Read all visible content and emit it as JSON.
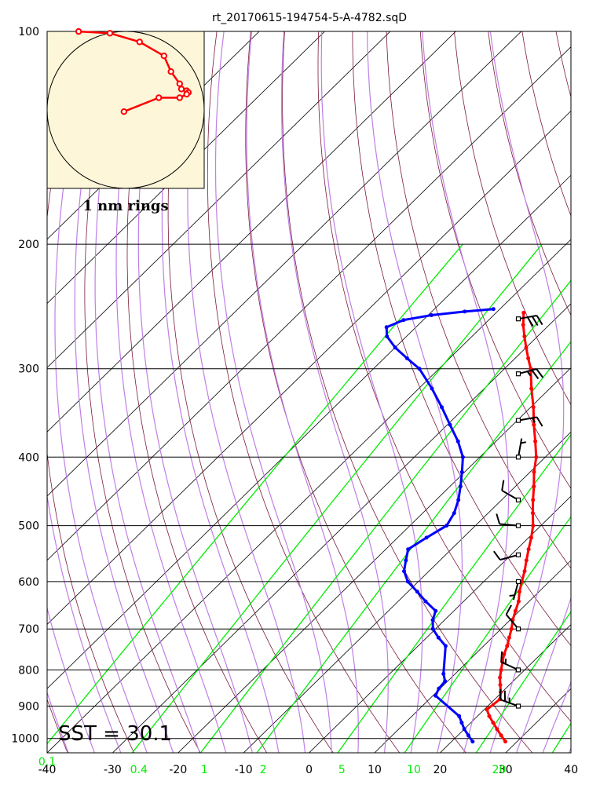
{
  "chart_data": {
    "type": "scatter",
    "subtype": "skew-t log-p sounding",
    "title": "rt_20170615-194754-5-A-4782.sqD",
    "sst_label": "SST = 30.1",
    "hodograph_label": "1 nm rings",
    "xlim": [
      -40,
      40
    ],
    "ylim": [
      1050,
      100
    ],
    "y_scale": "log",
    "grid": true,
    "pressure_ticks": [
      "100",
      "200",
      "300",
      "400",
      "500",
      "600",
      "700",
      "800",
      "900",
      "1000"
    ],
    "temperature_ticks": [
      "-40",
      "-30",
      "-20",
      "-10",
      "0",
      "10",
      "20",
      "30",
      "40"
    ],
    "mixing_ratio_ticks": [
      {
        "label": "0.1",
        "t": -40
      },
      {
        "label": "0.4",
        "t": -26
      },
      {
        "label": "1",
        "t": -16
      },
      {
        "label": "2",
        "t": -7
      },
      {
        "label": "5",
        "t": 5
      },
      {
        "label": "10",
        "t": 16
      },
      {
        "label": "20",
        "t": 29
      }
    ],
    "colors": {
      "temperature": "#ff0000",
      "dewpoint": "#0000ff",
      "mixing_ratio": "#00ee00",
      "moist_adiabat": "#bf7fe6",
      "dry_adiabat": "#7a1a3a",
      "isotherm": "#000000",
      "hodograph_fill": "#fdf6d8"
    },
    "series": [
      {
        "kind": "temperature",
        "points": [
          {
            "p": 1010,
            "t": 28.2
          },
          {
            "p": 990,
            "t": 26.6
          },
          {
            "p": 970,
            "t": 25.0
          },
          {
            "p": 950,
            "t": 23.4
          },
          {
            "p": 930,
            "t": 21.8
          },
          {
            "p": 910,
            "t": 20.4
          },
          {
            "p": 880,
            "t": 20.8
          },
          {
            "p": 860,
            "t": 19.8
          },
          {
            "p": 840,
            "t": 18.6
          },
          {
            "p": 820,
            "t": 17.4
          },
          {
            "p": 800,
            "t": 16.4
          },
          {
            "p": 780,
            "t": 15.4
          },
          {
            "p": 760,
            "t": 14.4
          },
          {
            "p": 740,
            "t": 13.6
          },
          {
            "p": 720,
            "t": 12.6
          },
          {
            "p": 700,
            "t": 11.6
          },
          {
            "p": 680,
            "t": 10.4
          },
          {
            "p": 660,
            "t": 9.4
          },
          {
            "p": 640,
            "t": 8.4
          },
          {
            "p": 620,
            "t": 7.0
          },
          {
            "p": 600,
            "t": 5.8
          },
          {
            "p": 580,
            "t": 4.6
          },
          {
            "p": 560,
            "t": 3.2
          },
          {
            "p": 540,
            "t": 1.8
          },
          {
            "p": 520,
            "t": 0.4
          },
          {
            "p": 500,
            "t": -1.2
          },
          {
            "p": 480,
            "t": -3.2
          },
          {
            "p": 460,
            "t": -5.2
          },
          {
            "p": 440,
            "t": -7.2
          },
          {
            "p": 420,
            "t": -9.4
          },
          {
            "p": 400,
            "t": -11.4
          },
          {
            "p": 380,
            "t": -14.0
          },
          {
            "p": 360,
            "t": -16.8
          },
          {
            "p": 340,
            "t": -19.6
          },
          {
            "p": 320,
            "t": -22.8
          },
          {
            "p": 300,
            "t": -26.0
          },
          {
            "p": 290,
            "t": -28.0
          },
          {
            "p": 280,
            "t": -30.0
          },
          {
            "p": 270,
            "t": -32.0
          },
          {
            "p": 260,
            "t": -34.0
          },
          {
            "p": 250,
            "t": -35.8
          }
        ]
      },
      {
        "kind": "dewpoint",
        "points": [
          {
            "p": 1010,
            "t": 23.2
          },
          {
            "p": 990,
            "t": 21.6
          },
          {
            "p": 970,
            "t": 20.0
          },
          {
            "p": 950,
            "t": 18.6
          },
          {
            "p": 930,
            "t": 17.2
          },
          {
            "p": 870,
            "t": 10.4
          },
          {
            "p": 850,
            "t": 9.8
          },
          {
            "p": 830,
            "t": 9.6
          },
          {
            "p": 810,
            "t": 8.2
          },
          {
            "p": 740,
            "t": 4.2
          },
          {
            "p": 720,
            "t": 1.8
          },
          {
            "p": 700,
            "t": -0.4
          },
          {
            "p": 680,
            "t": -1.8
          },
          {
            "p": 660,
            "t": -2.8
          },
          {
            "p": 640,
            "t": -5.8
          },
          {
            "p": 620,
            "t": -8.6
          },
          {
            "p": 600,
            "t": -11.6
          },
          {
            "p": 580,
            "t": -13.8
          },
          {
            "p": 560,
            "t": -15.2
          },
          {
            "p": 540,
            "t": -16.6
          },
          {
            "p": 520,
            "t": -15.6
          },
          {
            "p": 500,
            "t": -14.4
          },
          {
            "p": 480,
            "t": -15.2
          },
          {
            "p": 460,
            "t": -16.6
          },
          {
            "p": 440,
            "t": -18.4
          },
          {
            "p": 420,
            "t": -20.4
          },
          {
            "p": 400,
            "t": -22.6
          },
          {
            "p": 380,
            "t": -25.8
          },
          {
            "p": 360,
            "t": -29.6
          },
          {
            "p": 340,
            "t": -33.6
          },
          {
            "p": 320,
            "t": -38.0
          },
          {
            "p": 300,
            "t": -43.0
          },
          {
            "p": 290,
            "t": -46.5
          },
          {
            "p": 280,
            "t": -50.0
          },
          {
            "p": 270,
            "t": -53.0
          },
          {
            "p": 262,
            "t": -54.5
          },
          {
            "p": 256,
            "t": -53.0
          },
          {
            "p": 252,
            "t": -49.5
          },
          {
            "p": 249,
            "t": -45.0
          },
          {
            "p": 247,
            "t": -41.0
          }
        ]
      }
    ],
    "wind_barbs": [
      {
        "p": 255,
        "direction": 80,
        "speed_kt": 30
      },
      {
        "p": 305,
        "direction": 75,
        "speed_kt": 25
      },
      {
        "p": 355,
        "direction": 80,
        "speed_kt": 15
      },
      {
        "p": 400,
        "direction": 10,
        "speed_kt": 5
      },
      {
        "p": 460,
        "direction": 300,
        "speed_kt": 10
      },
      {
        "p": 500,
        "direction": 275,
        "speed_kt": 10
      },
      {
        "p": 550,
        "direction": 255,
        "speed_kt": 10
      },
      {
        "p": 600,
        "direction": 195,
        "speed_kt": 5
      },
      {
        "p": 700,
        "direction": 320,
        "speed_kt": 10
      },
      {
        "p": 800,
        "direction": 295,
        "speed_kt": 15
      },
      {
        "p": 900,
        "direction": 290,
        "speed_kt": 25
      }
    ],
    "hodograph": [
      {
        "u": -1.35,
        "v": 2.25
      },
      {
        "u": -0.45,
        "v": 2.2
      },
      {
        "u": 0.4,
        "v": 1.95
      },
      {
        "u": 1.1,
        "v": 1.55
      },
      {
        "u": 1.3,
        "v": 1.1
      },
      {
        "u": 1.55,
        "v": 0.75
      },
      {
        "u": 1.6,
        "v": 0.6
      },
      {
        "u": 1.75,
        "v": 0.55
      },
      {
        "u": 1.8,
        "v": 0.5
      },
      {
        "u": 1.75,
        "v": 0.45
      },
      {
        "u": 1.55,
        "v": 0.35
      },
      {
        "u": 0.95,
        "v": 0.35
      },
      {
        "u": -0.05,
        "v": -0.05
      }
    ]
  }
}
